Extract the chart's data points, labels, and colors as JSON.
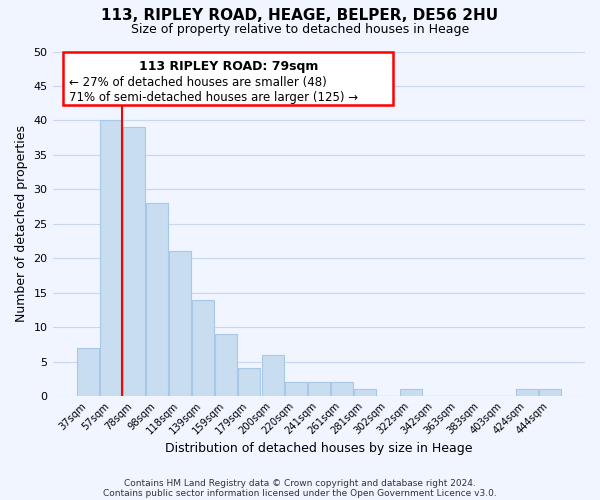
{
  "title": "113, RIPLEY ROAD, HEAGE, BELPER, DE56 2HU",
  "subtitle": "Size of property relative to detached houses in Heage",
  "xlabel": "Distribution of detached houses by size in Heage",
  "ylabel": "Number of detached properties",
  "bin_labels": [
    "37sqm",
    "57sqm",
    "78sqm",
    "98sqm",
    "118sqm",
    "139sqm",
    "159sqm",
    "179sqm",
    "200sqm",
    "220sqm",
    "241sqm",
    "261sqm",
    "281sqm",
    "302sqm",
    "322sqm",
    "342sqm",
    "363sqm",
    "383sqm",
    "403sqm",
    "424sqm",
    "444sqm"
  ],
  "bar_values": [
    7,
    40,
    39,
    28,
    21,
    14,
    9,
    4,
    6,
    2,
    2,
    2,
    1,
    0,
    1,
    0,
    0,
    0,
    0,
    1,
    1
  ],
  "bar_color": "#c8ddf0",
  "bar_edge_color": "#a8c8e8",
  "vline_bar_index": 2,
  "vline_color": "red",
  "ylim": [
    0,
    50
  ],
  "yticks": [
    0,
    5,
    10,
    15,
    20,
    25,
    30,
    35,
    40,
    45,
    50
  ],
  "ann_line1": "113 RIPLEY ROAD: 79sqm",
  "ann_line2": "← 27% of detached houses are smaller (48)",
  "ann_line3": "71% of semi-detached houses are larger (125) →",
  "footer1": "Contains HM Land Registry data © Crown copyright and database right 2024.",
  "footer2": "Contains public sector information licensed under the Open Government Licence v3.0.",
  "bg_color": "#f0f5ff",
  "grid_color": "#c8d8f0",
  "title_fontsize": 11,
  "subtitle_fontsize": 9
}
